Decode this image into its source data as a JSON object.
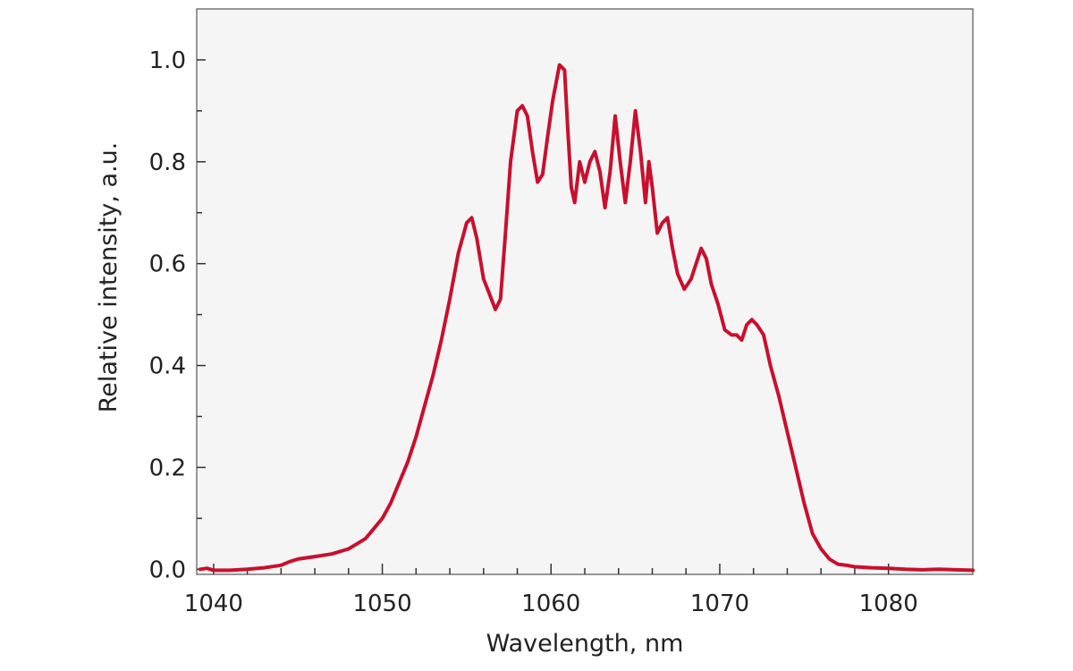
{
  "chart_data": {
    "type": "line",
    "title": "",
    "xlabel": "Wavelength, nm",
    "ylabel": "Relative intensity, a.u.",
    "xlim": [
      1039,
      1085
    ],
    "ylim": [
      -0.01,
      1.1
    ],
    "xticks": [
      1040,
      1050,
      1060,
      1070,
      1080
    ],
    "xtick_labels": [
      "1040",
      "1050",
      "1060",
      "1070",
      "1080"
    ],
    "yticks": [
      0.0,
      0.2,
      0.4,
      0.6,
      0.8,
      1.0
    ],
    "ytick_labels": [
      "0.0",
      "0.2",
      "0.4",
      "0.6",
      "0.8",
      "1.0"
    ],
    "grid": false,
    "legend": false,
    "plot_background": "#f5f5f5",
    "series": [
      {
        "color": "#c8102e",
        "x": [
          1039.2,
          1039.6,
          1040.0,
          1041.0,
          1042.0,
          1043.0,
          1044.0,
          1044.5,
          1045.0,
          1046.0,
          1047.0,
          1048.0,
          1048.5,
          1049.0,
          1049.5,
          1050.0,
          1050.5,
          1051.0,
          1051.5,
          1052.0,
          1052.5,
          1053.0,
          1053.5,
          1054.0,
          1054.5,
          1055.0,
          1055.3,
          1055.6,
          1056.0,
          1056.3,
          1056.7,
          1057.0,
          1057.3,
          1057.6,
          1058.0,
          1058.3,
          1058.6,
          1058.9,
          1059.2,
          1059.5,
          1059.8,
          1060.1,
          1060.5,
          1060.8,
          1061.0,
          1061.2,
          1061.4,
          1061.7,
          1062.0,
          1062.3,
          1062.6,
          1062.9,
          1063.2,
          1063.5,
          1063.8,
          1064.1,
          1064.4,
          1064.7,
          1065.0,
          1065.3,
          1065.6,
          1065.8,
          1066.0,
          1066.3,
          1066.6,
          1066.9,
          1067.2,
          1067.5,
          1067.9,
          1068.3,
          1068.6,
          1068.9,
          1069.2,
          1069.5,
          1069.9,
          1070.3,
          1070.7,
          1071.0,
          1071.3,
          1071.6,
          1071.9,
          1072.2,
          1072.6,
          1073.0,
          1073.5,
          1074.0,
          1074.5,
          1075.0,
          1075.5,
          1076.0,
          1076.5,
          1077.0,
          1077.5,
          1078.0,
          1079.0,
          1080.0,
          1081.0,
          1082.0,
          1083.0,
          1084.0,
          1085.0
        ],
        "y": [
          0.0,
          0.002,
          -0.002,
          -0.002,
          0.0,
          0.003,
          0.008,
          0.015,
          0.02,
          0.025,
          0.03,
          0.04,
          0.05,
          0.06,
          0.08,
          0.1,
          0.13,
          0.17,
          0.21,
          0.26,
          0.32,
          0.38,
          0.45,
          0.53,
          0.62,
          0.68,
          0.69,
          0.65,
          0.57,
          0.545,
          0.51,
          0.53,
          0.66,
          0.8,
          0.9,
          0.91,
          0.89,
          0.82,
          0.76,
          0.775,
          0.85,
          0.92,
          0.99,
          0.98,
          0.86,
          0.75,
          0.72,
          0.8,
          0.76,
          0.8,
          0.82,
          0.78,
          0.71,
          0.78,
          0.89,
          0.8,
          0.72,
          0.8,
          0.9,
          0.82,
          0.72,
          0.8,
          0.75,
          0.66,
          0.68,
          0.69,
          0.63,
          0.58,
          0.55,
          0.57,
          0.6,
          0.63,
          0.61,
          0.56,
          0.52,
          0.47,
          0.46,
          0.46,
          0.45,
          0.48,
          0.49,
          0.48,
          0.46,
          0.4,
          0.34,
          0.27,
          0.2,
          0.13,
          0.07,
          0.04,
          0.02,
          0.01,
          0.008,
          0.005,
          0.003,
          0.002,
          0.0,
          -0.001,
          0.0,
          -0.001,
          -0.002
        ]
      }
    ]
  }
}
